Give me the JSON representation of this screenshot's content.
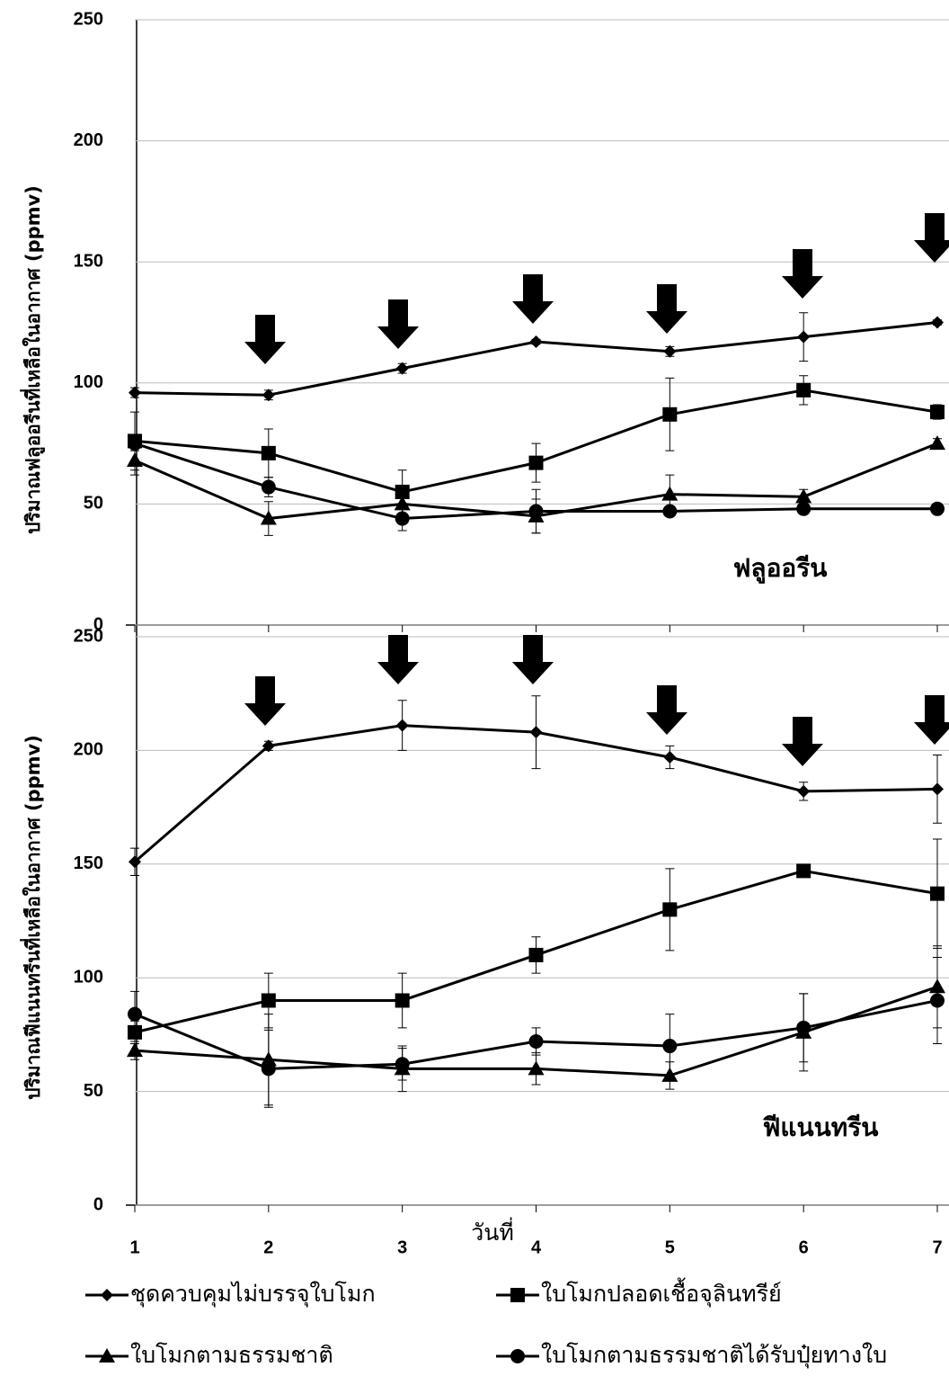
{
  "chart_data": [
    {
      "type": "line",
      "y_label": "ปริมาณฟลูออรีนที่เหลือในอากาศ (ppmv)",
      "annotation": "ฟลูออรีน",
      "x": [
        1,
        2,
        3,
        4,
        5,
        6,
        7
      ],
      "xlim": [
        1,
        7
      ],
      "ylim": [
        0,
        250
      ],
      "yticks": [
        0,
        50,
        100,
        150,
        200,
        250
      ],
      "grid": true,
      "series": [
        {
          "marker": "diamond",
          "color": "#000000",
          "values": [
            96,
            95,
            106,
            117,
            113,
            119,
            125
          ],
          "errors": [
            2,
            2,
            2,
            1,
            2,
            10,
            1
          ]
        },
        {
          "marker": "square",
          "color": "#000000",
          "values": [
            76,
            71,
            55,
            67,
            87,
            97,
            88
          ],
          "errors": [
            12,
            10,
            9,
            8,
            15,
            6,
            3
          ]
        },
        {
          "marker": "triangle",
          "color": "#000000",
          "values": [
            68,
            44,
            50,
            45,
            54,
            53,
            75
          ],
          "errors": [
            6,
            7,
            6,
            7,
            8,
            3,
            2
          ]
        },
        {
          "marker": "circle",
          "color": "#000000",
          "values": [
            75,
            57,
            44,
            47,
            47,
            48,
            48
          ],
          "errors": [
            3,
            4,
            5,
            9,
            1,
            2,
            1
          ]
        }
      ]
    },
    {
      "type": "line",
      "y_label": "ปริมาณฟีแนนทรีนที่เหลือในอากาศ (ppmv)",
      "annotation": "ฟีแนนทรีน",
      "x_label": "วันที่",
      "x": [
        1,
        2,
        3,
        4,
        5,
        6,
        7
      ],
      "xlim": [
        1,
        7
      ],
      "xticks": [
        1,
        2,
        3,
        4,
        5,
        6,
        7
      ],
      "ylim": [
        0,
        250
      ],
      "yticks": [
        0,
        50,
        100,
        150,
        200,
        250
      ],
      "grid": true,
      "series": [
        {
          "name": "ชุดควบคุมไม่บรรจุใบโมก",
          "marker": "diamond",
          "color": "#000000",
          "values": [
            151,
            202,
            211,
            208,
            197,
            182,
            183
          ],
          "errors": [
            6,
            2,
            11,
            16,
            5,
            4,
            15
          ]
        },
        {
          "name": "ใบโมกปลอดเชื้อจุลินทรีย์",
          "marker": "square",
          "color": "#000000",
          "values": [
            76,
            90,
            90,
            110,
            130,
            147,
            137
          ],
          "errors": [
            5,
            12,
            12,
            8,
            18,
            2,
            24
          ]
        },
        {
          "name": "ใบโมกตามธรรมชาติ",
          "marker": "triangle",
          "color": "#000000",
          "values": [
            68,
            64,
            60,
            60,
            57,
            76,
            96
          ],
          "errors": [
            4,
            20,
            10,
            7,
            6,
            17,
            18
          ]
        },
        {
          "name": "ใบโมกตามธรรมชาติได้รับปุ๋ยทางใบ",
          "marker": "circle",
          "color": "#000000",
          "values": [
            84,
            60,
            62,
            72,
            70,
            78,
            90
          ],
          "errors": [
            10,
            17,
            7,
            6,
            14,
            15,
            19
          ]
        }
      ]
    }
  ]
}
